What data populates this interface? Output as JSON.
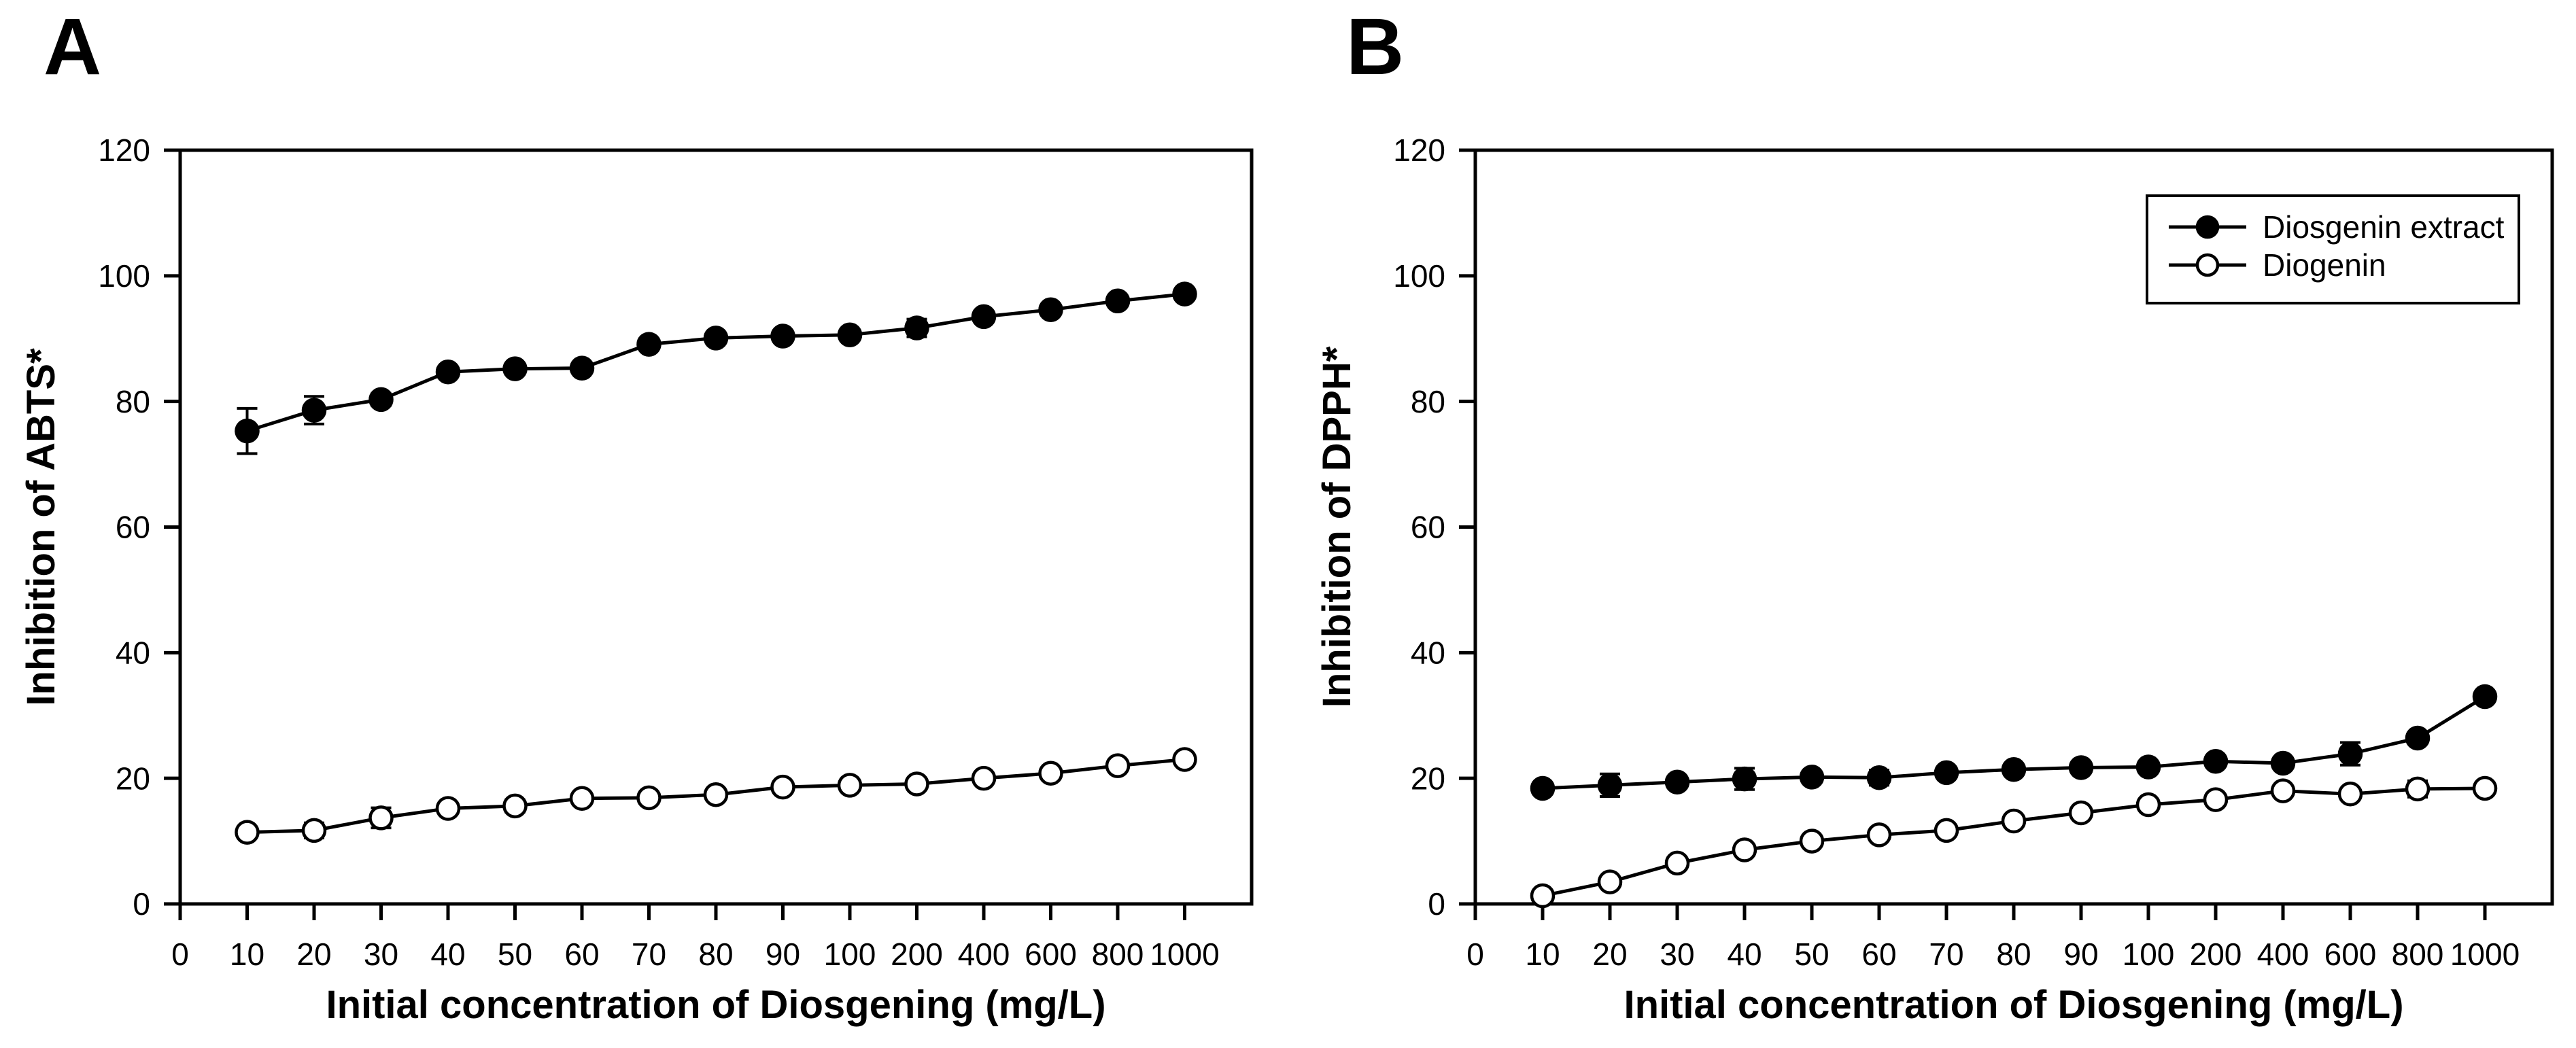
{
  "figure": {
    "background_color": "#ffffff",
    "ink_color": "#000000",
    "panels": [
      "A",
      "B"
    ]
  },
  "chart_data": [
    {
      "type": "line",
      "panel_label": "A",
      "xlabel": "Initial concentration of Diosgening (mg/L)",
      "ylabel": "Inhibition of ABTS*",
      "ylim": [
        0,
        120
      ],
      "yticks": [
        0,
        20,
        40,
        60,
        80,
        100,
        120
      ],
      "x_tick_labels": [
        "0",
        "10",
        "20",
        "30",
        "40",
        "50",
        "60",
        "70",
        "80",
        "90",
        "100",
        "200",
        "400",
        "600",
        "800",
        "1000"
      ],
      "categories": [
        10,
        20,
        30,
        40,
        50,
        60,
        70,
        80,
        90,
        100,
        200,
        400,
        600,
        800,
        1000
      ],
      "x_spacing": "categorical-equal",
      "grid": false,
      "frame": "box",
      "legend": {
        "show": false
      },
      "series": [
        {
          "name": "Diosgenin extract",
          "marker": "filled-circle",
          "color": "#000000",
          "values": [
            75.3,
            78.6,
            80.3,
            84.7,
            85.2,
            85.3,
            89.1,
            90.1,
            90.4,
            90.6,
            91.7,
            93.5,
            94.6,
            96.0,
            97.1
          ],
          "errors": [
            3.6,
            2.2,
            1.0,
            0.8,
            0.8,
            0.8,
            0.8,
            0.8,
            0.8,
            0.8,
            1.4,
            0.8,
            0.8,
            0.8,
            0.8
          ]
        },
        {
          "name": "Diogenin",
          "marker": "open-circle",
          "color": "#000000",
          "values": [
            11.4,
            11.7,
            13.7,
            15.2,
            15.6,
            16.8,
            16.9,
            17.4,
            18.6,
            18.9,
            19.1,
            20.0,
            20.8,
            22.0,
            23.0
          ],
          "errors": [
            0.6,
            1.2,
            1.6,
            0.8,
            1.0,
            0.6,
            0.6,
            0.6,
            0.6,
            0.6,
            0.6,
            0.6,
            0.6,
            0.6,
            0.6
          ]
        }
      ]
    },
    {
      "type": "line",
      "panel_label": "B",
      "xlabel": "Initial concentration of Diosgening (mg/L)",
      "ylabel": "Inhibition of DPPH*",
      "ylim": [
        0,
        120
      ],
      "yticks": [
        0,
        20,
        40,
        60,
        80,
        100,
        120
      ],
      "x_tick_labels": [
        "0",
        "10",
        "20",
        "30",
        "40",
        "50",
        "60",
        "70",
        "80",
        "90",
        "100",
        "200",
        "400",
        "600",
        "800",
        "1000"
      ],
      "categories": [
        10,
        20,
        30,
        40,
        50,
        60,
        70,
        80,
        90,
        100,
        200,
        400,
        600,
        800,
        1000
      ],
      "x_spacing": "categorical-equal",
      "grid": false,
      "frame": "box",
      "legend": {
        "show": true,
        "position": "top-right",
        "entries": [
          "Diosgenin extract",
          "Diogenin"
        ]
      },
      "series": [
        {
          "name": "Diosgenin extract",
          "marker": "filled-circle",
          "color": "#000000",
          "values": [
            18.4,
            18.9,
            19.4,
            19.9,
            20.2,
            20.1,
            20.9,
            21.4,
            21.7,
            21.8,
            22.7,
            22.4,
            23.9,
            26.4,
            33.0
          ],
          "errors": [
            0.6,
            1.8,
            0.6,
            1.7,
            0.6,
            1.2,
            0.6,
            0.6,
            0.6,
            0.6,
            0.6,
            0.6,
            1.8,
            0.6,
            0.6
          ]
        },
        {
          "name": "Diogenin",
          "marker": "open-circle",
          "color": "#000000",
          "values": [
            1.3,
            3.5,
            6.5,
            8.6,
            10.0,
            11.0,
            11.7,
            13.2,
            14.5,
            15.8,
            16.6,
            18.0,
            17.5,
            18.3,
            18.4
          ],
          "errors": [
            0.5,
            0.4,
            0.7,
            0.4,
            0.4,
            0.4,
            0.4,
            0.4,
            0.6,
            0.6,
            0.9,
            0.6,
            0.6,
            1.3,
            0.6
          ]
        }
      ]
    }
  ]
}
